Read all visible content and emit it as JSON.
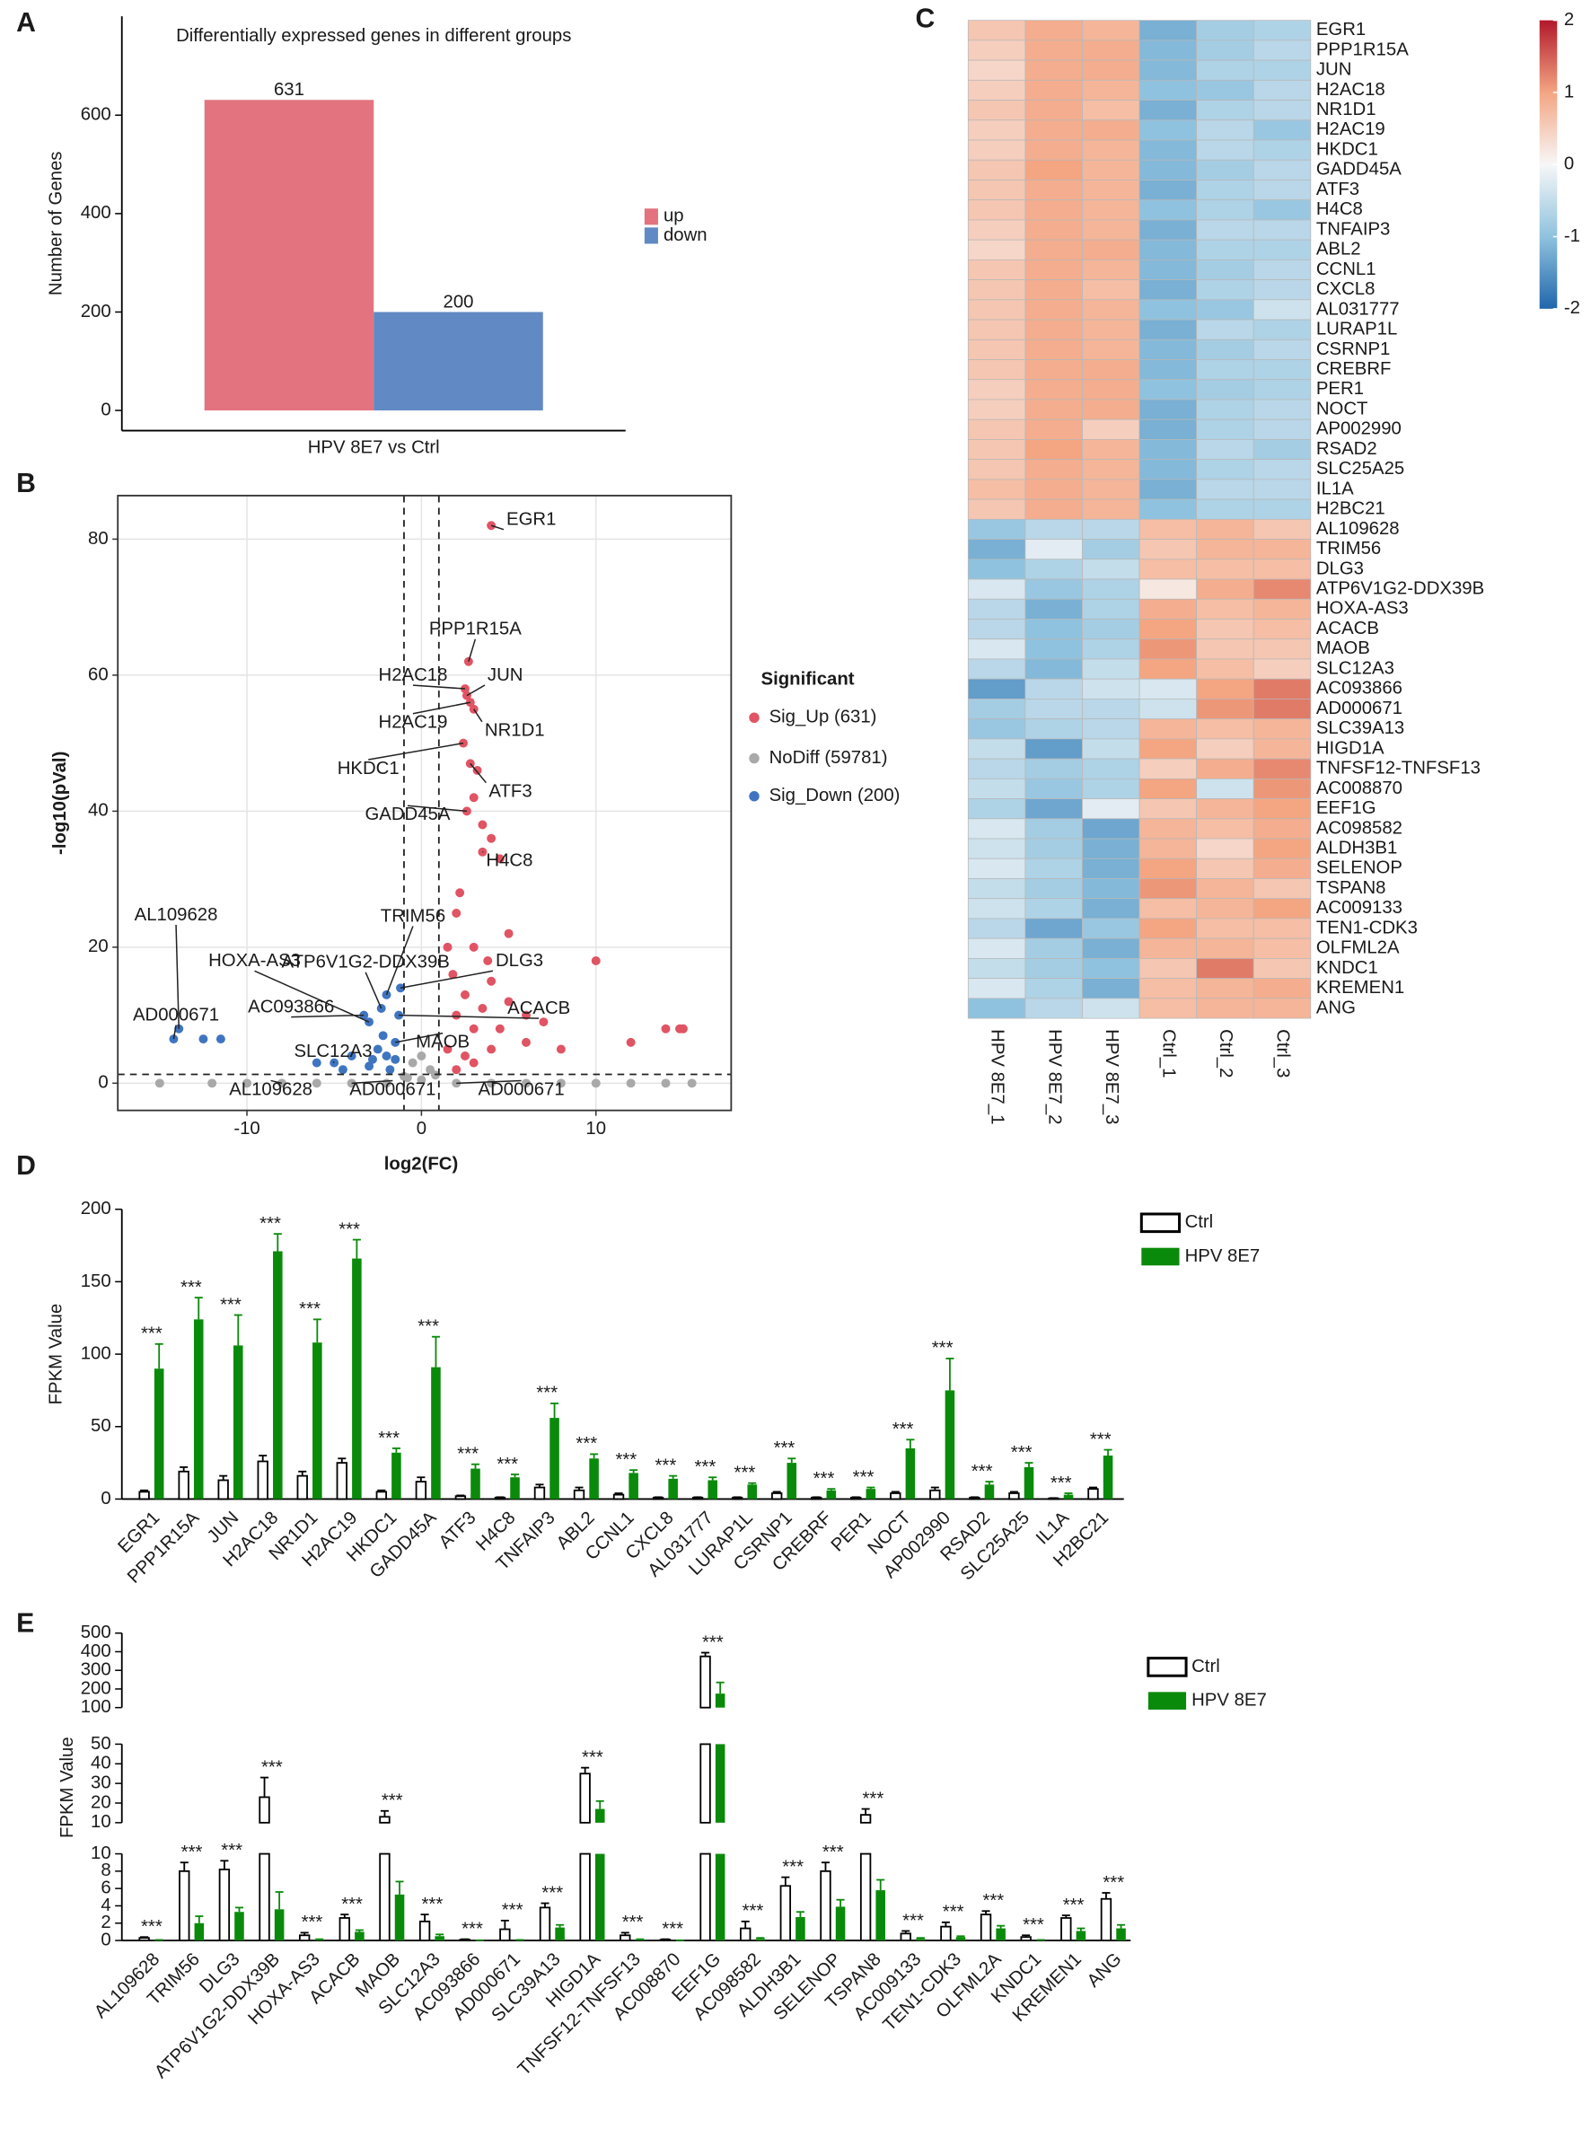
{
  "chart_data": [
    {
      "panel": "A",
      "type": "bar",
      "title": "Differentially expressed genes in different groups",
      "ylabel": "Number of Genes",
      "categories": [
        "HPV 8E7 vs Ctrl"
      ],
      "series": [
        {
          "name": "up",
          "color": "#e2737f",
          "values": [
            631
          ]
        },
        {
          "name": "down",
          "color": "#6189c4",
          "values": [
            200
          ]
        }
      ],
      "show_values": true,
      "ylim": [
        -41,
        801
      ],
      "yticks": [
        0,
        200,
        400,
        600
      ]
    },
    {
      "panel": "B",
      "type": "scatter",
      "xlabel": "log2(FC)",
      "ylabel": "-log10(pVal)",
      "legend_title": "Significant",
      "xlim": [
        -17.4,
        17.75
      ],
      "ylim": [
        -4,
        86.4
      ],
      "xticks": [
        -10,
        0,
        10
      ],
      "yticks": [
        0,
        20,
        40,
        60,
        80
      ],
      "grid": true,
      "vlines": [
        -1,
        1
      ],
      "hline": 1.3,
      "series": [
        {
          "name": "Sig_Up (631)",
          "color": "#e05464",
          "x": [
            4,
            2.7,
            2.5,
            2.6,
            2.8,
            3,
            2.4,
            2.8,
            2.6,
            3.5,
            3.2,
            3,
            3.5,
            4,
            4.5,
            10,
            14,
            14.8,
            15,
            12,
            2,
            3,
            4,
            5,
            6,
            7,
            2,
            3,
            1.5,
            2.5,
            4,
            8,
            5,
            2.2,
            3.8,
            1.8,
            2.5,
            3.5,
            1.5,
            6,
            4.5,
            3,
            2
          ],
          "values": [
            82,
            62,
            58,
            57,
            56,
            55,
            50,
            47,
            40,
            34,
            46,
            42,
            38,
            36,
            33,
            18,
            8,
            8,
            8,
            6,
            25,
            20,
            15,
            12,
            10,
            9,
            10,
            8,
            5,
            4,
            5,
            5,
            22,
            28,
            18,
            16,
            13,
            11,
            20,
            6,
            8,
            3,
            2
          ],
          "labels": [
            "EGR1",
            "PPP1R15A",
            "H2AC18",
            "JUN",
            "H2AC19",
            "NR1D1",
            "HKDC1",
            "ATF3",
            "GADD45A",
            "H4C8",
            null,
            null,
            null,
            null,
            null,
            null,
            null,
            null,
            null,
            null,
            null,
            null,
            null,
            null,
            null,
            null,
            null,
            null,
            null,
            null,
            null,
            null,
            null,
            null,
            null,
            null,
            null,
            null,
            null,
            null,
            null,
            null,
            null
          ]
        },
        {
          "name": "NoDiff (59781)",
          "color": "#a9a9a9",
          "x": [
            -15,
            -12,
            -10,
            -8,
            -6,
            -4,
            -2,
            -1,
            0,
            0.5,
            -0.5,
            0,
            2,
            4,
            6,
            8,
            10,
            12,
            14,
            15.5,
            0.8,
            -0.8
          ],
          "values": [
            0,
            0,
            0,
            0,
            0,
            0,
            0,
            1,
            0.5,
            2,
            3,
            4,
            0,
            0,
            0,
            0,
            0,
            0,
            0,
            0,
            1.2,
            0.8
          ],
          "labels": [
            null,
            null,
            null,
            "AL109628",
            null,
            "AD000671",
            null,
            null,
            null,
            null,
            null,
            null,
            "AD000671",
            null,
            null,
            null,
            null,
            null,
            null,
            null,
            null,
            null
          ]
        },
        {
          "name": "Sig_Down (200)",
          "color": "#3f75c0",
          "x": [
            -13.9,
            -14.2,
            -12.5,
            -11.5,
            -3,
            -2,
            -2.3,
            -1.2,
            -1.3,
            -3.3,
            -5,
            -1.5,
            -6,
            -4,
            -2.5,
            -2,
            -1.8,
            -3,
            -2.2,
            -1.5,
            -4.5,
            -2.8
          ],
          "values": [
            8,
            6.5,
            6.5,
            6.5,
            9,
            13,
            11,
            14,
            10,
            10,
            3,
            6,
            3,
            4,
            5,
            4,
            2,
            2.5,
            7,
            3.5,
            2,
            3.5
          ],
          "labels": [
            "AL109628",
            "AD000671",
            null,
            null,
            "HOXA-AS3",
            "TRIM56",
            "ATP6V1G2-DDX39B",
            "DLG3",
            "ACACB",
            "AC093866",
            "SLC12A3",
            "MAOB",
            null,
            null,
            null,
            null,
            null,
            null,
            null,
            null,
            null,
            null
          ]
        }
      ]
    },
    {
      "panel": "C",
      "type": "heatmap",
      "rows": [
        "EGR1",
        "PPP1R15A",
        "JUN",
        "H2AC18",
        "NR1D1",
        "H2AC19",
        "HKDC1",
        "GADD45A",
        "ATF3",
        "H4C8",
        "TNFAIP3",
        "ABL2",
        "CCNL1",
        "CXCL8",
        "AL031777",
        "LURAP1L",
        "CSRNP1",
        "CREBRF",
        "PER1",
        "NOCT",
        "AP002990",
        "RSAD2",
        "SLC25A25",
        "IL1A",
        "H2BC21",
        "AL109628",
        "TRIM56",
        "DLG3",
        "ATP6V1G2-DDX39B",
        "HOXA-AS3",
        "ACACB",
        "MAOB",
        "SLC12A3",
        "AC093866",
        "AD000671",
        "SLC39A13",
        "HIGD1A",
        "TNFSF12-TNFSF13",
        "AC008870",
        "EEF1G",
        "AC098582",
        "ALDH3B1",
        "SELENOP",
        "TSPAN8",
        "AC009133",
        "TEN1-CDK3",
        "OLFML2A",
        "KNDC1",
        "KREMEN1",
        "ANG"
      ],
      "columns": [
        "HPV 8E7_1",
        "HPV 8E7_2",
        "HPV 8E7_3",
        "Ctrl_1",
        "Ctrl_2",
        "Ctrl_3"
      ],
      "values": [
        [
          0.6,
          0.9,
          0.8,
          -1.2,
          -0.8,
          -0.7
        ],
        [
          0.5,
          0.9,
          0.9,
          -1.1,
          -0.8,
          -0.6
        ],
        [
          0.4,
          0.9,
          0.9,
          -1.1,
          -0.7,
          -0.7
        ],
        [
          0.5,
          0.9,
          0.8,
          -1.0,
          -0.9,
          -0.6
        ],
        [
          0.6,
          0.9,
          0.7,
          -1.2,
          -0.7,
          -0.6
        ],
        [
          0.5,
          0.9,
          0.9,
          -1.0,
          -0.6,
          -0.9
        ],
        [
          0.5,
          0.9,
          0.8,
          -1.1,
          -0.6,
          -0.7
        ],
        [
          0.6,
          1.0,
          0.8,
          -1.1,
          -0.8,
          -0.6
        ],
        [
          0.6,
          0.9,
          0.8,
          -1.2,
          -0.7,
          -0.6
        ],
        [
          0.6,
          0.9,
          0.8,
          -1.0,
          -0.7,
          -0.9
        ],
        [
          0.5,
          0.9,
          0.8,
          -1.2,
          -0.6,
          -0.6
        ],
        [
          0.4,
          0.9,
          0.9,
          -1.1,
          -0.7,
          -0.7
        ],
        [
          0.6,
          0.9,
          0.8,
          -1.1,
          -0.8,
          -0.6
        ],
        [
          0.6,
          0.9,
          0.7,
          -1.2,
          -0.7,
          -0.6
        ],
        [
          0.6,
          0.9,
          0.8,
          -1.0,
          -0.9,
          -0.4
        ],
        [
          0.6,
          0.9,
          0.8,
          -1.2,
          -0.6,
          -0.7
        ],
        [
          0.6,
          0.9,
          0.8,
          -1.1,
          -0.8,
          -0.6
        ],
        [
          0.6,
          0.9,
          0.9,
          -1.1,
          -0.7,
          -0.7
        ],
        [
          0.5,
          0.9,
          0.9,
          -1.0,
          -0.8,
          -0.7
        ],
        [
          0.5,
          0.9,
          0.9,
          -1.2,
          -0.7,
          -0.6
        ],
        [
          0.6,
          0.9,
          0.5,
          -1.2,
          -0.7,
          -0.6
        ],
        [
          0.6,
          1.0,
          0.8,
          -1.1,
          -0.6,
          -0.8
        ],
        [
          0.6,
          0.9,
          0.8,
          -1.1,
          -0.7,
          -0.6
        ],
        [
          0.7,
          0.9,
          0.8,
          -1.2,
          -0.6,
          -0.6
        ],
        [
          0.6,
          0.9,
          0.8,
          -1.0,
          -0.7,
          -0.7
        ],
        [
          -0.9,
          -0.6,
          -0.6,
          0.7,
          0.8,
          0.6
        ],
        [
          -1.2,
          -0.2,
          -0.8,
          0.6,
          0.8,
          0.8
        ],
        [
          -1.0,
          -0.7,
          -0.5,
          0.7,
          0.7,
          0.7
        ],
        [
          -0.3,
          -0.9,
          -0.7,
          0.2,
          0.9,
          1.2
        ],
        [
          -0.6,
          -1.2,
          -0.7,
          0.9,
          0.7,
          0.8
        ],
        [
          -0.6,
          -1.0,
          -0.8,
          1.0,
          0.6,
          0.7
        ],
        [
          -0.3,
          -1.0,
          -0.7,
          1.1,
          0.6,
          0.6
        ],
        [
          -0.6,
          -1.1,
          -0.5,
          1.0,
          0.7,
          0.5
        ],
        [
          -1.4,
          -0.6,
          -0.4,
          -0.3,
          1.0,
          1.3
        ],
        [
          -0.8,
          -0.6,
          -0.6,
          -0.4,
          1.1,
          1.3
        ],
        [
          -0.9,
          -0.7,
          -0.6,
          0.8,
          0.7,
          0.8
        ],
        [
          -0.5,
          -1.4,
          -0.5,
          1.0,
          0.5,
          0.8
        ],
        [
          -0.6,
          -0.8,
          -0.7,
          0.5,
          0.9,
          1.2
        ],
        [
          -0.5,
          -0.9,
          -0.7,
          1.0,
          -0.4,
          1.1
        ],
        [
          -0.7,
          -1.3,
          -0.2,
          0.6,
          0.8,
          1.0
        ],
        [
          -0.3,
          -0.8,
          -1.3,
          0.8,
          0.7,
          0.9
        ],
        [
          -0.4,
          -0.8,
          -1.2,
          0.8,
          0.4,
          1.0
        ],
        [
          -0.3,
          -0.7,
          -1.2,
          1.0,
          0.6,
          0.9
        ],
        [
          -0.5,
          -0.8,
          -1.1,
          1.1,
          0.8,
          0.6
        ],
        [
          -0.4,
          -0.7,
          -1.2,
          0.7,
          0.8,
          1.0
        ],
        [
          -0.6,
          -1.3,
          -0.9,
          1.0,
          0.7,
          0.7
        ],
        [
          -0.3,
          -0.8,
          -1.2,
          0.8,
          0.8,
          0.7
        ],
        [
          -0.5,
          -0.8,
          -1.0,
          0.6,
          1.3,
          0.6
        ],
        [
          -0.3,
          -0.7,
          -1.2,
          0.7,
          0.8,
          0.9
        ],
        [
          -1.0,
          -0.6,
          -0.4,
          0.7,
          0.8,
          0.8
        ]
      ],
      "zlim": [
        -2,
        2
      ],
      "zticks": [
        -2,
        -1,
        0,
        1,
        2
      ],
      "colors": [
        "#2166ac",
        "#8fc2de",
        "#f7f7f7",
        "#f4a582",
        "#b2182b"
      ]
    },
    {
      "panel": "D",
      "type": "bar",
      "ylabel": "FPKM Value",
      "categories": [
        "EGR1",
        "PPP1R15A",
        "JUN",
        "H2AC18",
        "NR1D1",
        "H2AC19",
        "HKDC1",
        "GADD45A",
        "ATF3",
        "H4C8",
        "TNFAIP3",
        "ABL2",
        "CCNL1",
        "CXCL8",
        "AL031777",
        "LURAP1L",
        "CSRNP1",
        "CREBRF",
        "PER1",
        "NOCT",
        "AP002990",
        "RSAD2",
        "SLC25A25",
        "IL1A",
        "H2BC21"
      ],
      "series": [
        {
          "name": "Ctrl",
          "color": "#ffffff",
          "edgecolor": "#000000",
          "values": [
            5,
            19,
            13,
            26,
            16,
            25,
            5,
            12,
            2,
            1,
            8,
            6,
            3,
            1,
            1,
            1,
            4,
            1,
            1,
            4,
            6,
            1,
            4,
            0.5,
            7
          ],
          "errors": [
            1,
            3,
            3,
            4,
            3,
            3,
            1,
            3,
            0.5,
            0.3,
            2,
            2,
            1,
            0.3,
            0.3,
            0.3,
            1,
            0.3,
            0.3,
            1,
            2,
            0.3,
            1,
            0.2,
            1
          ]
        },
        {
          "name": "HPV 8E7",
          "color": "#0a8a0a",
          "values": [
            90,
            124,
            106,
            171,
            108,
            166,
            32,
            91,
            21,
            15,
            56,
            28,
            18,
            14,
            13,
            10,
            25,
            6,
            7,
            35,
            75,
            10,
            22,
            3,
            30
          ],
          "errors": [
            17,
            15,
            21,
            12,
            16,
            13,
            3,
            21,
            3,
            2,
            10,
            3,
            2,
            2,
            2,
            1,
            3,
            1,
            1,
            6,
            22,
            2,
            3,
            1,
            4
          ]
        }
      ],
      "sig_labels": [
        "***",
        "***",
        "***",
        "***",
        "***",
        "***",
        "***",
        "***",
        "***",
        "***",
        "***",
        "***",
        "***",
        "***",
        "***",
        "***",
        "***",
        "***",
        "***",
        "***",
        "***",
        "***",
        "***",
        "***",
        "***"
      ],
      "ylim": [
        0,
        200
      ],
      "yticks": [
        0,
        50,
        100,
        150,
        200
      ]
    },
    {
      "panel": "E",
      "type": "bar",
      "ylabel": "FPKM Value",
      "categories": [
        "AL109628",
        "TRIM56",
        "DLG3",
        "ATP6V1G2-DDX39B",
        "HOXA-AS3",
        "ACACB",
        "MAOB",
        "SLC12A3",
        "AC093866",
        "AD000671",
        "SLC39A13",
        "HIGD1A",
        "TNFSF12-TNFSF13",
        "AC008870",
        "EEF1G",
        "AC098582",
        "ALDH3B1",
        "SELENOP",
        "TSPAN8",
        "AC009133",
        "TEN1-CDK3",
        "OLFML2A",
        "KNDC1",
        "KREMEN1",
        "ANG"
      ],
      "series": [
        {
          "name": "Ctrl",
          "color": "#ffffff",
          "edgecolor": "#000000",
          "values": [
            0.3,
            8,
            8.2,
            23,
            0.6,
            2.6,
            13,
            2.2,
            0.1,
            1.3,
            3.8,
            35,
            0.6,
            0.1,
            375,
            1.4,
            6.3,
            8,
            14,
            0.8,
            1.6,
            3,
            0.4,
            2.6,
            4.8
          ],
          "errors": [
            0.1,
            1,
            1,
            10,
            0.3,
            0.4,
            3,
            0.8,
            0.05,
            1,
            0.5,
            3,
            0.3,
            0.05,
            20,
            0.8,
            1,
            1,
            3,
            0.3,
            0.5,
            0.4,
            0.2,
            0.3,
            0.7
          ]
        },
        {
          "name": "HPV 8E7",
          "color": "#0a8a0a",
          "values": [
            0.05,
            2,
            3.3,
            3.6,
            0.1,
            1.0,
            5.3,
            0.5,
            0.02,
            0.05,
            1.5,
            17,
            0.1,
            0.02,
            175,
            0.2,
            2.7,
            3.9,
            5.8,
            0.2,
            0.4,
            1.4,
            0.05,
            1.1,
            1.4
          ],
          "errors": [
            0.02,
            0.8,
            0.5,
            2,
            0.05,
            0.2,
            1.5,
            0.2,
            0.01,
            0.02,
            0.3,
            4,
            0.05,
            0.01,
            60,
            0.1,
            0.6,
            0.8,
            1.2,
            0.1,
            0.1,
            0.3,
            0.02,
            0.3,
            0.4
          ]
        }
      ],
      "sig_labels": [
        "***",
        "***",
        "***",
        "***",
        "***",
        "***",
        "***",
        "***",
        "***",
        "***",
        "***",
        "***",
        "***",
        "***",
        "***",
        "***",
        "***",
        "***",
        "***",
        "***",
        "***",
        "***",
        "***",
        "***",
        "***"
      ],
      "y_segments": [
        {
          "ylim": [
            0,
            10
          ],
          "yticks": [
            0,
            2,
            4,
            6,
            8,
            10
          ]
        },
        {
          "ylim": [
            10,
            50
          ],
          "yticks": [
            10,
            20,
            30,
            40,
            50
          ]
        },
        {
          "ylim": [
            100,
            500
          ],
          "yticks": [
            100,
            200,
            300,
            400,
            500
          ]
        }
      ]
    }
  ]
}
